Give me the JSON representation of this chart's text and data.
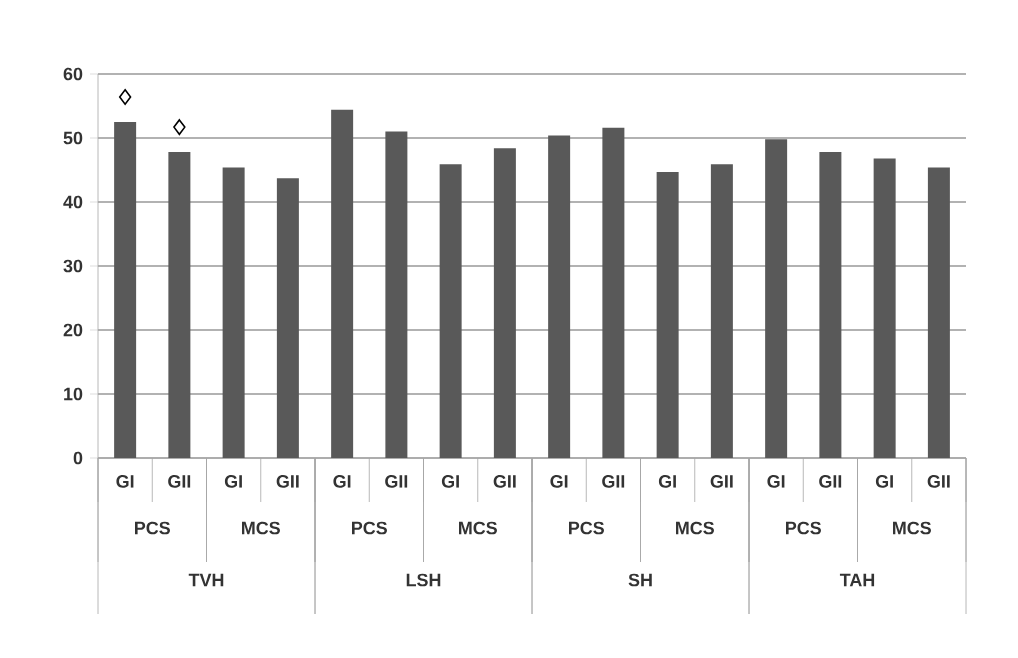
{
  "chart_data": {
    "type": "bar",
    "categories": [
      "GI",
      "GII",
      "GI",
      "GII",
      "GI",
      "GII",
      "GI",
      "GII",
      "GI",
      "GII",
      "GI",
      "GII",
      "GI",
      "GII",
      "GI",
      "GII"
    ],
    "series": [
      {
        "color": "#595959",
        "values": [
          52.5,
          47.8,
          45.4,
          43.7,
          54.4,
          51.0,
          45.9,
          48.4,
          50.4,
          51.6,
          44.7,
          45.9,
          49.8,
          47.8,
          46.8,
          45.4
        ]
      },
      {
        "type": "scatter",
        "marker": "diamond",
        "color": "#000000",
        "values": [
          56.4,
          51.7,
          null,
          null,
          null,
          null,
          null,
          null,
          null,
          null,
          null,
          null,
          null,
          null,
          null,
          null
        ]
      }
    ],
    "annotations": [
      "PCS",
      "MCS",
      "PCS",
      "MCS",
      "PCS",
      "MCS",
      "PCS",
      "MCS",
      "TVH",
      "LSH",
      "SH",
      "TAH"
    ],
    "ylim": [
      0,
      60
    ],
    "yticks": [
      0,
      10,
      20,
      30,
      40,
      50,
      60
    ],
    "grid": "y"
  }
}
